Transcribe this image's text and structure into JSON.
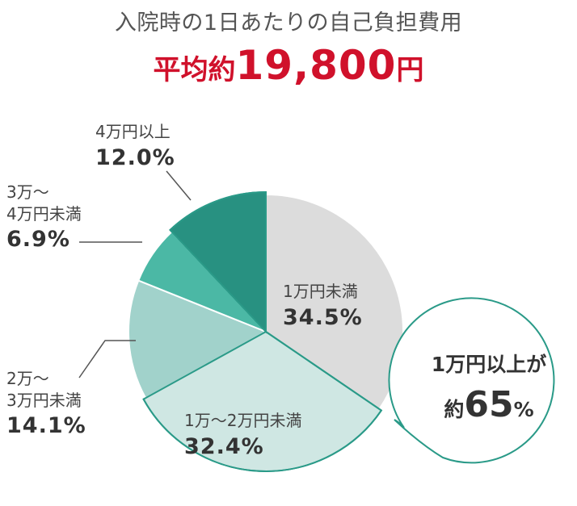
{
  "header": {
    "title": "入院時の1日あたりの自己負担費用",
    "avg_label": "平均約",
    "avg_value": "19,800",
    "avg_unit": "円"
  },
  "chart_data": {
    "type": "pie",
    "title": "入院時の1日あたりの自己負担費用",
    "unit": "%",
    "start_angle_deg": 0,
    "direction": "clockwise",
    "slices": [
      {
        "label": "1万円未満",
        "lines": [
          "1万円未満"
        ],
        "value": 34.5,
        "display": "34.5%",
        "color": "#dcdcdc"
      },
      {
        "label": "1万〜2万円未満",
        "lines": [
          "1万〜2万円未満"
        ],
        "value": 32.4,
        "display": "32.4%",
        "color": "#cfe7e3"
      },
      {
        "label": "2万〜3万円未満",
        "lines": [
          "2万〜",
          "3万円未満"
        ],
        "value": 14.1,
        "display": "14.1%",
        "color": "#a1d2cb"
      },
      {
        "label": "3万〜4万円未満",
        "lines": [
          "3万〜",
          "4万円未満"
        ],
        "value": 6.9,
        "display": "6.9%",
        "color": "#4bb8a5"
      },
      {
        "label": "4万円以上",
        "lines": [
          "4万円以上"
        ],
        "value": 12.0,
        "display": "12.0%",
        "color": "#289181"
      }
    ]
  },
  "callout": {
    "line1": "1万円以上が",
    "prefix": "約",
    "value": "65",
    "unit": "%"
  }
}
